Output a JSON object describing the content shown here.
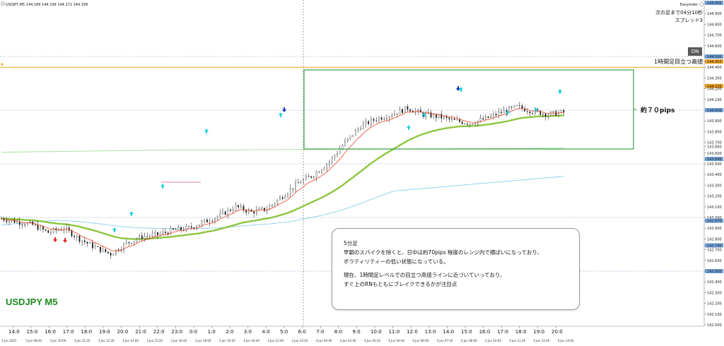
{
  "header": {
    "symbol_info": "USDJPY,M5  144.189 144.199 144.172 144.199"
  },
  "info_panel": {
    "line1": "Easyorder",
    "line2": "次の足まで04分10秒",
    "line3": "スプレッド3"
  },
  "on_button": {
    "label": "ON"
  },
  "watermark": "USDJPY M5",
  "annotations": {
    "resistance_label": "1時間足目立つ高値",
    "range_label": "約７０pips"
  },
  "comment": {
    "title": "5分足",
    "line1": "早朝のスパイクを除くと、日中は約70pips 程度のレンジ内で横ばいになっており、",
    "line2": "ボラティリティーの低い状態になっている。",
    "line3": "現在、1時間足レベルでの目立つ高値ラインに近づいていっており、",
    "line4": "すぐ上のRNもともにブレイクできるかが注目点"
  },
  "colors": {
    "candle": "#111111",
    "ema_fast": "#e8452a",
    "ema_slow": "#8cc63f",
    "ema_long": "#7ec8e8",
    "ema_200": "#a8e0a0",
    "resistance": "#f0a020",
    "range_box": "#3aa04a",
    "arrow_up": "#20d0e0",
    "arrow_down": "#e02020",
    "arrow_blue": "#1030c0",
    "watermark": "#1d8a1d"
  },
  "chart_data": {
    "type": "candlestick",
    "symbol": "USDJPY",
    "timeframe": "M5",
    "ylim": [
      142.0,
      145.0
    ],
    "price_labels": [
      "145.000",
      "144.900",
      "144.800",
      "144.700",
      "144.600",
      "144.500",
      "144.453",
      "144.400",
      "144.300",
      "144.225",
      "144.200",
      "144.100",
      "144.000",
      "143.900",
      "143.800",
      "143.700",
      "143.660",
      "143.600",
      "143.545",
      "143.500",
      "143.400",
      "143.300",
      "143.200",
      "143.100",
      "143.000",
      "142.970",
      "142.900",
      "142.800",
      "142.740",
      "142.700",
      "142.600",
      "142.500",
      "142.400",
      "142.300",
      "142.200",
      "142.100",
      "142.000"
    ],
    "time_labels": [
      "14:0",
      "15:0",
      "16:0",
      "17:0",
      "18:0",
      "19:0",
      "20:0",
      "21:0",
      "22:0",
      "23:0",
      "0:0",
      "1:0",
      "2:0",
      "3:0",
      "4:0",
      "5:0",
      "6:0",
      "7:0",
      "8:0",
      "9:0",
      "10:0",
      "11:0",
      "12:0",
      "13:0",
      "14:0",
      "15:0",
      "16:0",
      "17:0",
      "18:0",
      "19:0",
      "20:0"
    ],
    "date_labels": [
      "3 Jun 2025",
      "3 Jun 08:40",
      "3 Jun 10:00",
      "3 Jun 11:20",
      "3 Jun 12:40",
      "3 Jun 14:00",
      "3 Jun 15:20",
      "3 Jun 16:40",
      "3 Jun 18:00",
      "3 Jun 19:20",
      "3 Jun 20:40",
      "3 Jun 22:00",
      "3 Jun 23:20",
      "4 Jun 00:40",
      "4 Jun 02:00",
      "4 Jun 03:20",
      "4 Jun 04:40",
      "4 Jun 06:00",
      "4 Jun 07:20",
      "4 Jun 08:40",
      "4 Jun 10:00",
      "4 Jun 11:20",
      "4 Jun 12:40",
      "4 Jun 14:00"
    ],
    "close_path": [
      [
        0,
        142.99
      ],
      [
        6,
        142.96
      ],
      [
        12,
        142.93
      ],
      [
        18,
        142.86
      ],
      [
        24,
        142.9
      ],
      [
        30,
        142.8
      ],
      [
        36,
        142.72
      ],
      [
        42,
        142.66
      ],
      [
        48,
        142.76
      ],
      [
        54,
        142.82
      ],
      [
        60,
        142.84
      ],
      [
        66,
        142.88
      ],
      [
        72,
        142.9
      ],
      [
        78,
        142.96
      ],
      [
        84,
        143.02
      ],
      [
        90,
        143.1
      ],
      [
        96,
        143.05
      ],
      [
        102,
        143.08
      ],
      [
        108,
        143.2
      ],
      [
        114,
        143.32
      ],
      [
        120,
        143.4
      ],
      [
        126,
        143.52
      ],
      [
        132,
        143.7
      ],
      [
        138,
        143.85
      ],
      [
        144,
        143.92
      ],
      [
        150,
        143.96
      ],
      [
        156,
        144.02
      ],
      [
        162,
        143.96
      ],
      [
        168,
        143.94
      ],
      [
        174,
        143.9
      ],
      [
        180,
        143.88
      ],
      [
        186,
        143.92
      ],
      [
        192,
        143.98
      ],
      [
        198,
        144.03
      ],
      [
        204,
        143.99
      ],
      [
        210,
        143.96
      ],
      [
        216,
        143.98
      ],
      [
        222,
        143.94
      ],
      [
        228,
        143.9
      ],
      [
        234,
        143.92
      ],
      [
        240,
        143.88
      ],
      [
        246,
        143.87
      ],
      [
        252,
        143.9
      ],
      [
        258,
        143.84
      ],
      [
        264,
        143.82
      ],
      [
        270,
        143.76
      ],
      [
        276,
        143.78
      ],
      [
        282,
        143.84
      ],
      [
        288,
        143.9
      ],
      [
        294,
        144.0
      ],
      [
        300,
        144.04
      ],
      [
        306,
        144.1
      ],
      [
        312,
        144.22
      ],
      [
        318,
        144.26
      ],
      [
        324,
        144.2
      ],
      [
        330,
        144.14
      ],
      [
        336,
        144.1
      ],
      [
        342,
        144.02
      ],
      [
        348,
        143.9
      ],
      [
        354,
        143.86
      ],
      [
        360,
        143.95
      ],
      [
        366,
        144.04
      ],
      [
        372,
        143.96
      ],
      [
        378,
        143.9
      ],
      [
        384,
        143.92
      ],
      [
        390,
        143.98
      ],
      [
        396,
        144.02
      ],
      [
        402,
        144.12
      ],
      [
        408,
        144.16
      ],
      [
        414,
        144.1
      ]
    ],
    "resistance_level": 144.4,
    "range": {
      "high": 144.38,
      "low": 143.65,
      "pips": 70
    }
  }
}
